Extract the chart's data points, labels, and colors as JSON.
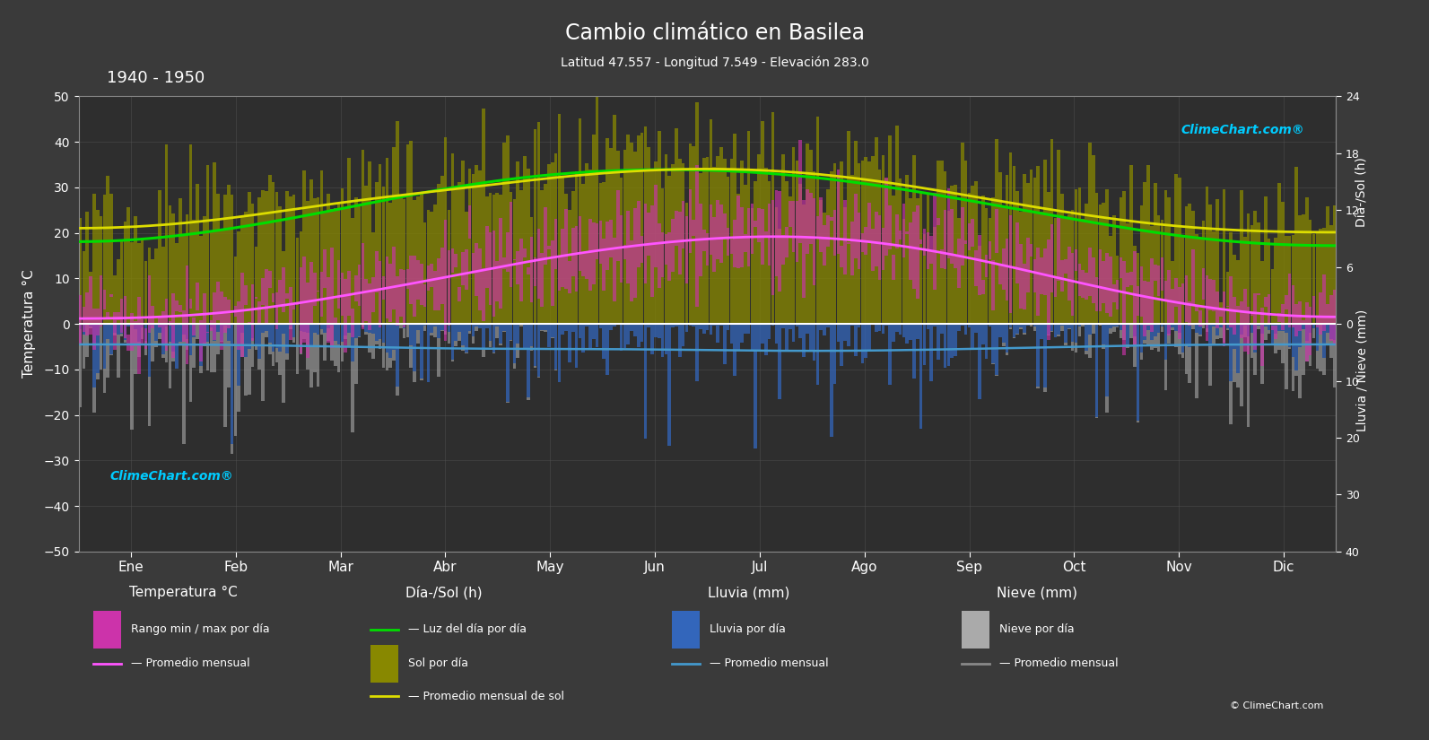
{
  "title": "Cambio climático en Basilea",
  "subtitle": "Latitud 47.557 - Longitud 7.549 - Elevación 283.0",
  "period": "1940 - 1950",
  "bg_color": "#3a3a3a",
  "plot_bg_color": "#2e2e2e",
  "months": [
    "Ene",
    "Feb",
    "Mar",
    "Abr",
    "May",
    "Jun",
    "Jul",
    "Ago",
    "Sep",
    "Oct",
    "Nov",
    "Dic"
  ],
  "ylim_temp": [
    -50,
    50
  ],
  "temp_max_monthly": [
    4,
    6,
    11,
    15,
    20,
    23,
    26,
    25,
    21,
    14,
    8,
    4
  ],
  "temp_min_monthly": [
    -3,
    -2,
    2,
    5,
    10,
    13,
    15,
    15,
    11,
    6,
    1,
    -2
  ],
  "temp_mean_monthly": [
    1,
    2,
    6,
    10,
    15,
    18,
    20,
    19,
    15,
    9,
    4,
    1
  ],
  "sun_hours_monthly": [
    10.5,
    11.5,
    14,
    15,
    16,
    17,
    17,
    16,
    14.5,
    13,
    11,
    10
  ],
  "solar_mean_monthly": [
    10,
    11,
    13,
    14,
    15.5,
    16.5,
    16.5,
    15.5,
    13.5,
    11.5,
    10,
    9.5
  ],
  "daylight_monthly": [
    8.5,
    10,
    12,
    14.5,
    16,
    16.5,
    16.2,
    15,
    13,
    11,
    9,
    8
  ],
  "rain_mean_monthly": [
    -4.5,
    -4.5,
    -5.0,
    -5.5,
    -5.5,
    -5.5,
    -6.0,
    -6.0,
    -5.5,
    -5.0,
    -4.5,
    -4.5
  ],
  "grid_color": "#555555",
  "green_line_color": "#00dd00",
  "yellow_line_color": "#dddd00",
  "pink_line_color": "#ff55ff",
  "blue_line_color": "#4499cc",
  "white_line_color": "#ffffff",
  "sun_scale_max": 24,
  "temp_scale_max": 50
}
